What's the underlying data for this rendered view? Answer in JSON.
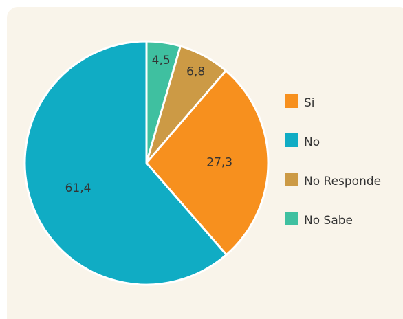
{
  "chart_data": {
    "type": "pie",
    "categories": [
      "Si",
      "No",
      "No Responde",
      "No Sabe"
    ],
    "values": [
      27.3,
      61.4,
      6.8,
      4.5
    ],
    "value_labels": [
      "27,3",
      "61,4",
      "6,8",
      "4,5"
    ],
    "colors": [
      "#f7901e",
      "#10acc4",
      "#cc9a45",
      "#3fc0a0"
    ],
    "legend": "right"
  }
}
